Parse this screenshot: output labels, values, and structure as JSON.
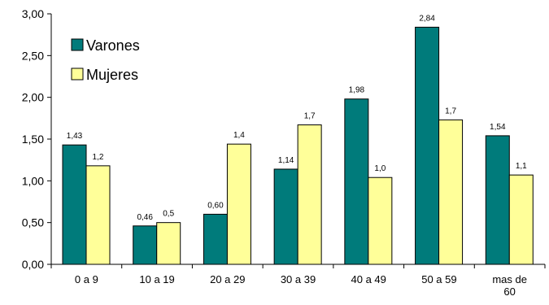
{
  "chart_data": {
    "type": "bar",
    "categories": [
      "0 a 9",
      "10 a 19",
      "20 a 29",
      "30 a 39",
      "40 a 49",
      "50 a 59",
      "mas de 60"
    ],
    "category_label_lines": [
      [
        "0 a 9"
      ],
      [
        "10 a 19"
      ],
      [
        "20 a 29"
      ],
      [
        "30 a 39"
      ],
      [
        "40 a 49"
      ],
      [
        "50 a 59"
      ],
      [
        "mas de",
        "60"
      ]
    ],
    "series": [
      {
        "name": "Varones",
        "color": "#007b7b",
        "values": [
          1.43,
          0.46,
          0.6,
          1.14,
          1.98,
          2.84,
          1.54
        ],
        "labels": [
          "1,43",
          "0,46",
          "0,60",
          "1,14",
          "1,98",
          "2,84",
          "1,54"
        ]
      },
      {
        "name": "Mujeres",
        "color": "#ffff99",
        "values": [
          1.18,
          0.5,
          1.44,
          1.67,
          1.04,
          1.73,
          1.07
        ],
        "labels": [
          "1,2",
          "0,5",
          "1,4",
          "1,7",
          "1,0",
          "1,7",
          "1,1"
        ]
      }
    ],
    "ylim": [
      0,
      3
    ],
    "yticks": [
      0,
      0.5,
      1,
      1.5,
      2,
      2.5,
      3
    ],
    "ytick_labels": [
      "0,00",
      "0,50",
      "1,00",
      "1,50",
      "2,00",
      "2,50",
      "3,00"
    ],
    "legend_position": "top-left",
    "grid": false
  }
}
